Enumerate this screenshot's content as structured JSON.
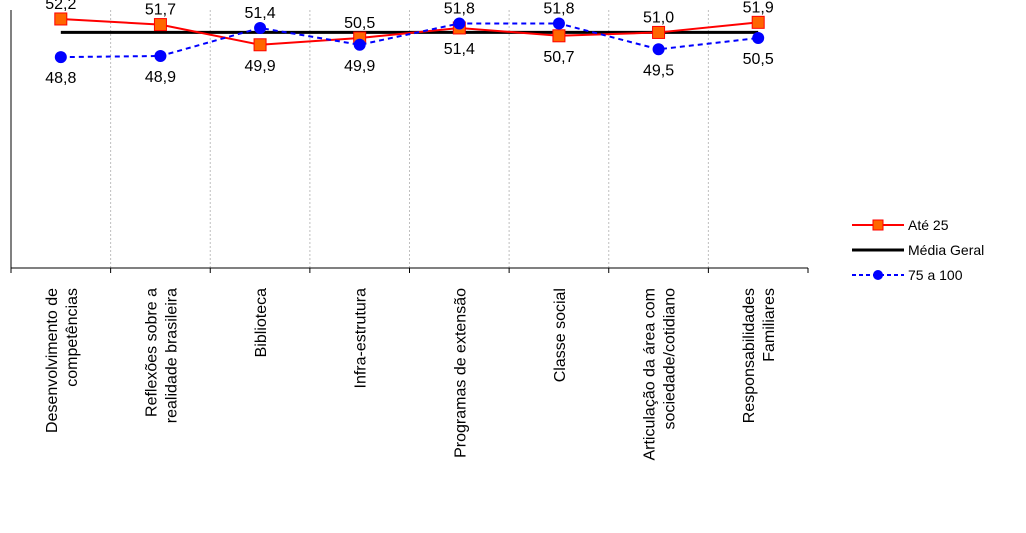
{
  "chart_data": {
    "type": "line",
    "categories": [
      [
        "Desenvolvimento de",
        "competências"
      ],
      [
        "Reflexões sobre a",
        "realidade brasileira"
      ],
      [
        "Biblioteca"
      ],
      [
        "Infra-estrutura"
      ],
      [
        "Programas de extensão"
      ],
      [
        "Classe social"
      ],
      [
        "Articulação da área com",
        "sociedade/cotidiano"
      ],
      [
        "Responsabilidades",
        "Familiares"
      ]
    ],
    "series": [
      {
        "name": "Até 25",
        "color": "#ff0000",
        "marker": "square",
        "marker_fill": "#ff6600",
        "dash": "solid",
        "values": [
          52.2,
          51.7,
          49.9,
          50.5,
          51.4,
          50.7,
          51.0,
          51.9
        ]
      },
      {
        "name": "Média Geral",
        "color": "#000000",
        "marker": "none",
        "dash": "solid",
        "values": [
          51.0,
          51.0,
          51.0,
          51.0,
          51.0,
          51.0,
          51.0,
          51.0
        ]
      },
      {
        "name": "75 a 100",
        "color": "#0000ff",
        "marker": "circle",
        "marker_fill": "#0000ff",
        "dash": "dashed",
        "values": [
          48.8,
          48.9,
          51.4,
          49.9,
          51.8,
          51.8,
          49.5,
          50.5
        ]
      }
    ],
    "data_labels": [
      {
        "series": 0,
        "index": 0,
        "text": "52,2"
      },
      {
        "series": 2,
        "index": 0,
        "text": "48,8"
      },
      {
        "series": 0,
        "index": 1,
        "text": "51,7"
      },
      {
        "series": 2,
        "index": 1,
        "text": "48,9"
      },
      {
        "series": 2,
        "index": 2,
        "text": "51,4"
      },
      {
        "series": 0,
        "index": 2,
        "text": "49,9"
      },
      {
        "series": 0,
        "index": 3,
        "text": "50,5"
      },
      {
        "series": 2,
        "index": 3,
        "text": "49,9"
      },
      {
        "series": 0,
        "index": 4,
        "text": "51,4"
      },
      {
        "series": 2,
        "index": 4,
        "text": "51,8"
      },
      {
        "series": 2,
        "index": 5,
        "text": "51,8"
      },
      {
        "series": 0,
        "index": 5,
        "text": "50,7"
      },
      {
        "series": 0,
        "index": 6,
        "text": "51,0"
      },
      {
        "series": 2,
        "index": 6,
        "text": "49,5"
      },
      {
        "series": 0,
        "index": 7,
        "text": "51,9"
      },
      {
        "series": 2,
        "index": 7,
        "text": "50,5"
      }
    ],
    "ylim": [
      30,
      53
    ],
    "grid": "vertical-dotted",
    "legend": "right"
  }
}
